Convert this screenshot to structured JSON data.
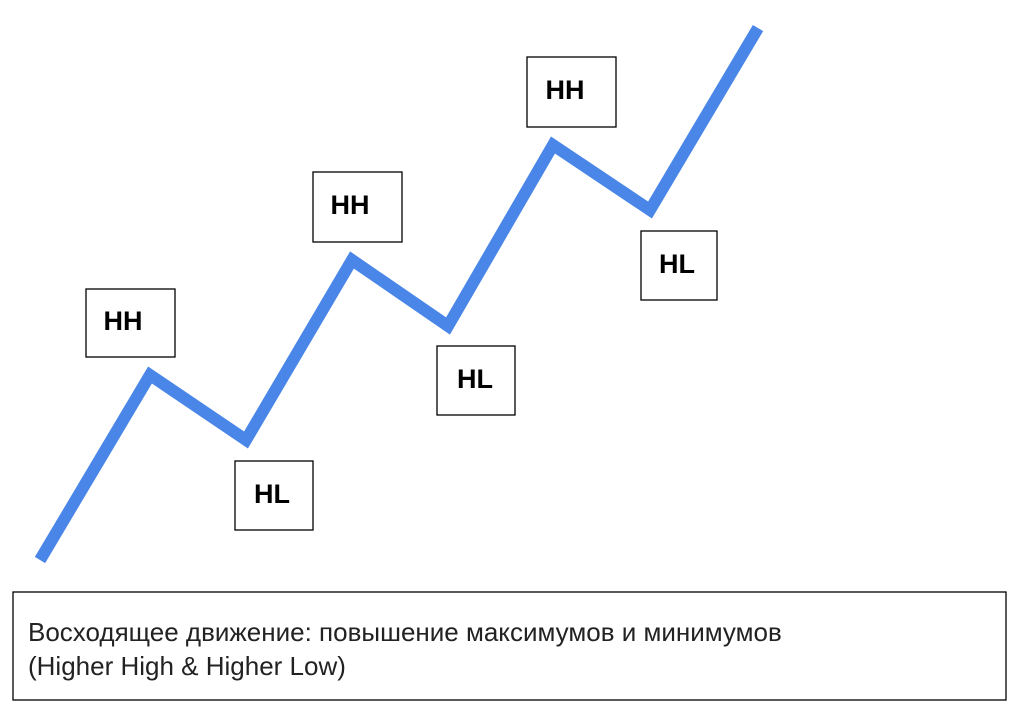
{
  "nodes": [
    {
      "label": "HH"
    },
    {
      "label": "HL"
    },
    {
      "label": "HH"
    },
    {
      "label": "HL"
    },
    {
      "label": "HH"
    },
    {
      "label": "HL"
    }
  ],
  "caption": {
    "lines": [
      "Восходящее движение: повышение максимумов и минимумов",
      "(Higher High & Higher Low)"
    ]
  }
}
